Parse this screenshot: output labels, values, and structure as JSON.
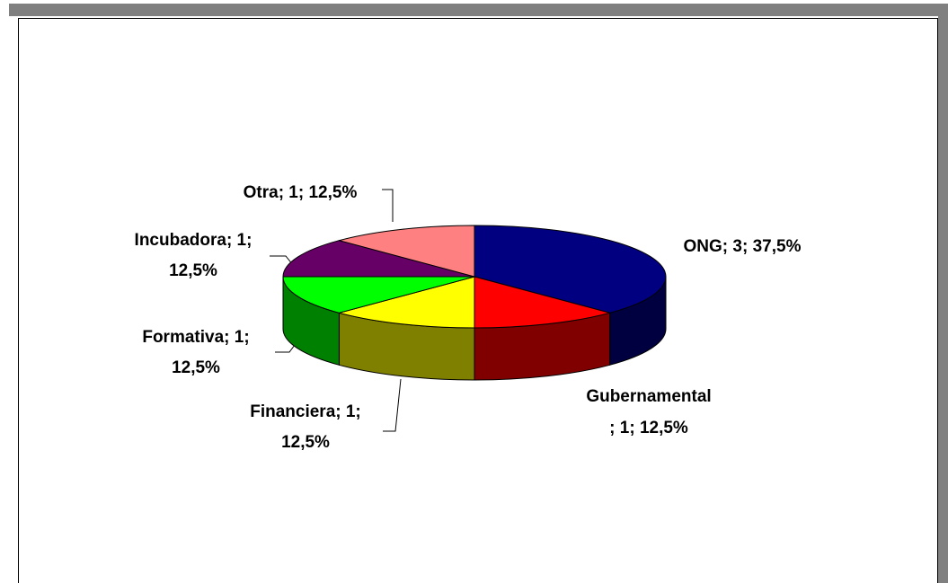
{
  "chart_data": {
    "type": "pie3d",
    "values": [
      3,
      1,
      1,
      1,
      1,
      1
    ],
    "value_labels": [
      [
        "ONG; 3; 37,5%"
      ],
      [
        "Gubernamental",
        "; 1; 12,5%"
      ],
      [
        "Financiera; 1;",
        "12,5%"
      ],
      [
        "Formativa; 1;",
        "12,5%"
      ],
      [
        "Incubadora; 1;",
        "12,5%"
      ],
      [
        "Otra; 1; 12,5%"
      ]
    ],
    "colors": [
      "#000080",
      "#ff0000",
      "#ffff00",
      "#00ff00",
      "#660066",
      "#ff8080"
    ],
    "side_colors": [
      "#000040",
      "#800000",
      "#808000",
      "#008000",
      "#330033",
      "#804040"
    ]
  }
}
